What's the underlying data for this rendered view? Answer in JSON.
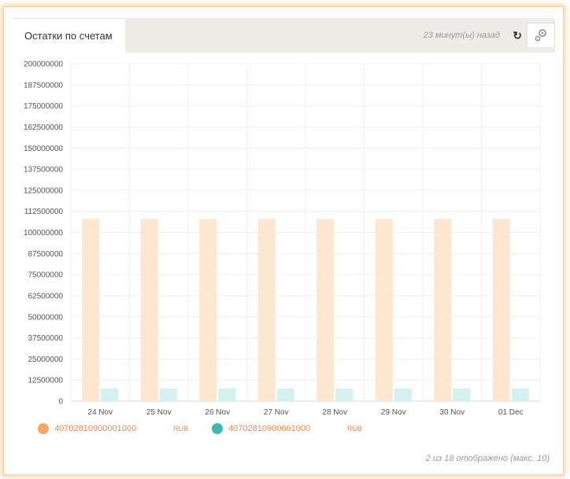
{
  "widget": {
    "title": "Остатки по счетам",
    "updated": "23 минут(ы) назад",
    "footer": "2 из 18 отображено (макс. 10)"
  },
  "icons": {
    "refresh": "refresh-icon",
    "settings": "gears-icon"
  },
  "colors": {
    "series1": "#f5a862",
    "series2": "#3db8b6",
    "bar1": "#fde7d0",
    "bar2": "#d4f0f0",
    "accent": "#f2884a"
  },
  "legend": [
    {
      "account": "40702810900001000",
      "currency": "RUB"
    },
    {
      "account": "40702810900661000",
      "currency": "RUB"
    }
  ],
  "chart_data": {
    "type": "bar",
    "categories": [
      "24 Nov",
      "25 Nov",
      "26 Nov",
      "27 Nov",
      "28 Nov",
      "29 Nov",
      "30 Nov",
      "01 Dec"
    ],
    "series": [
      {
        "name": "40702810900001000",
        "values": [
          108000000,
          108000000,
          108000000,
          108000000,
          108000000,
          108000000,
          108000000,
          108000000
        ]
      },
      {
        "name": "40702810900661000",
        "values": [
          7600000,
          7600000,
          7600000,
          7600000,
          7600000,
          7600000,
          7600000,
          7600000
        ]
      }
    ],
    "ylim": [
      0,
      200000000
    ],
    "yticks": [
      0,
      12500000,
      25000000,
      37500000,
      50000000,
      62500000,
      75000000,
      87500000,
      100000000,
      112500000,
      125000000,
      137500000,
      150000000,
      162500000,
      175000000,
      187500000,
      200000000
    ],
    "grid": true,
    "legend_position": "bottom-left"
  }
}
